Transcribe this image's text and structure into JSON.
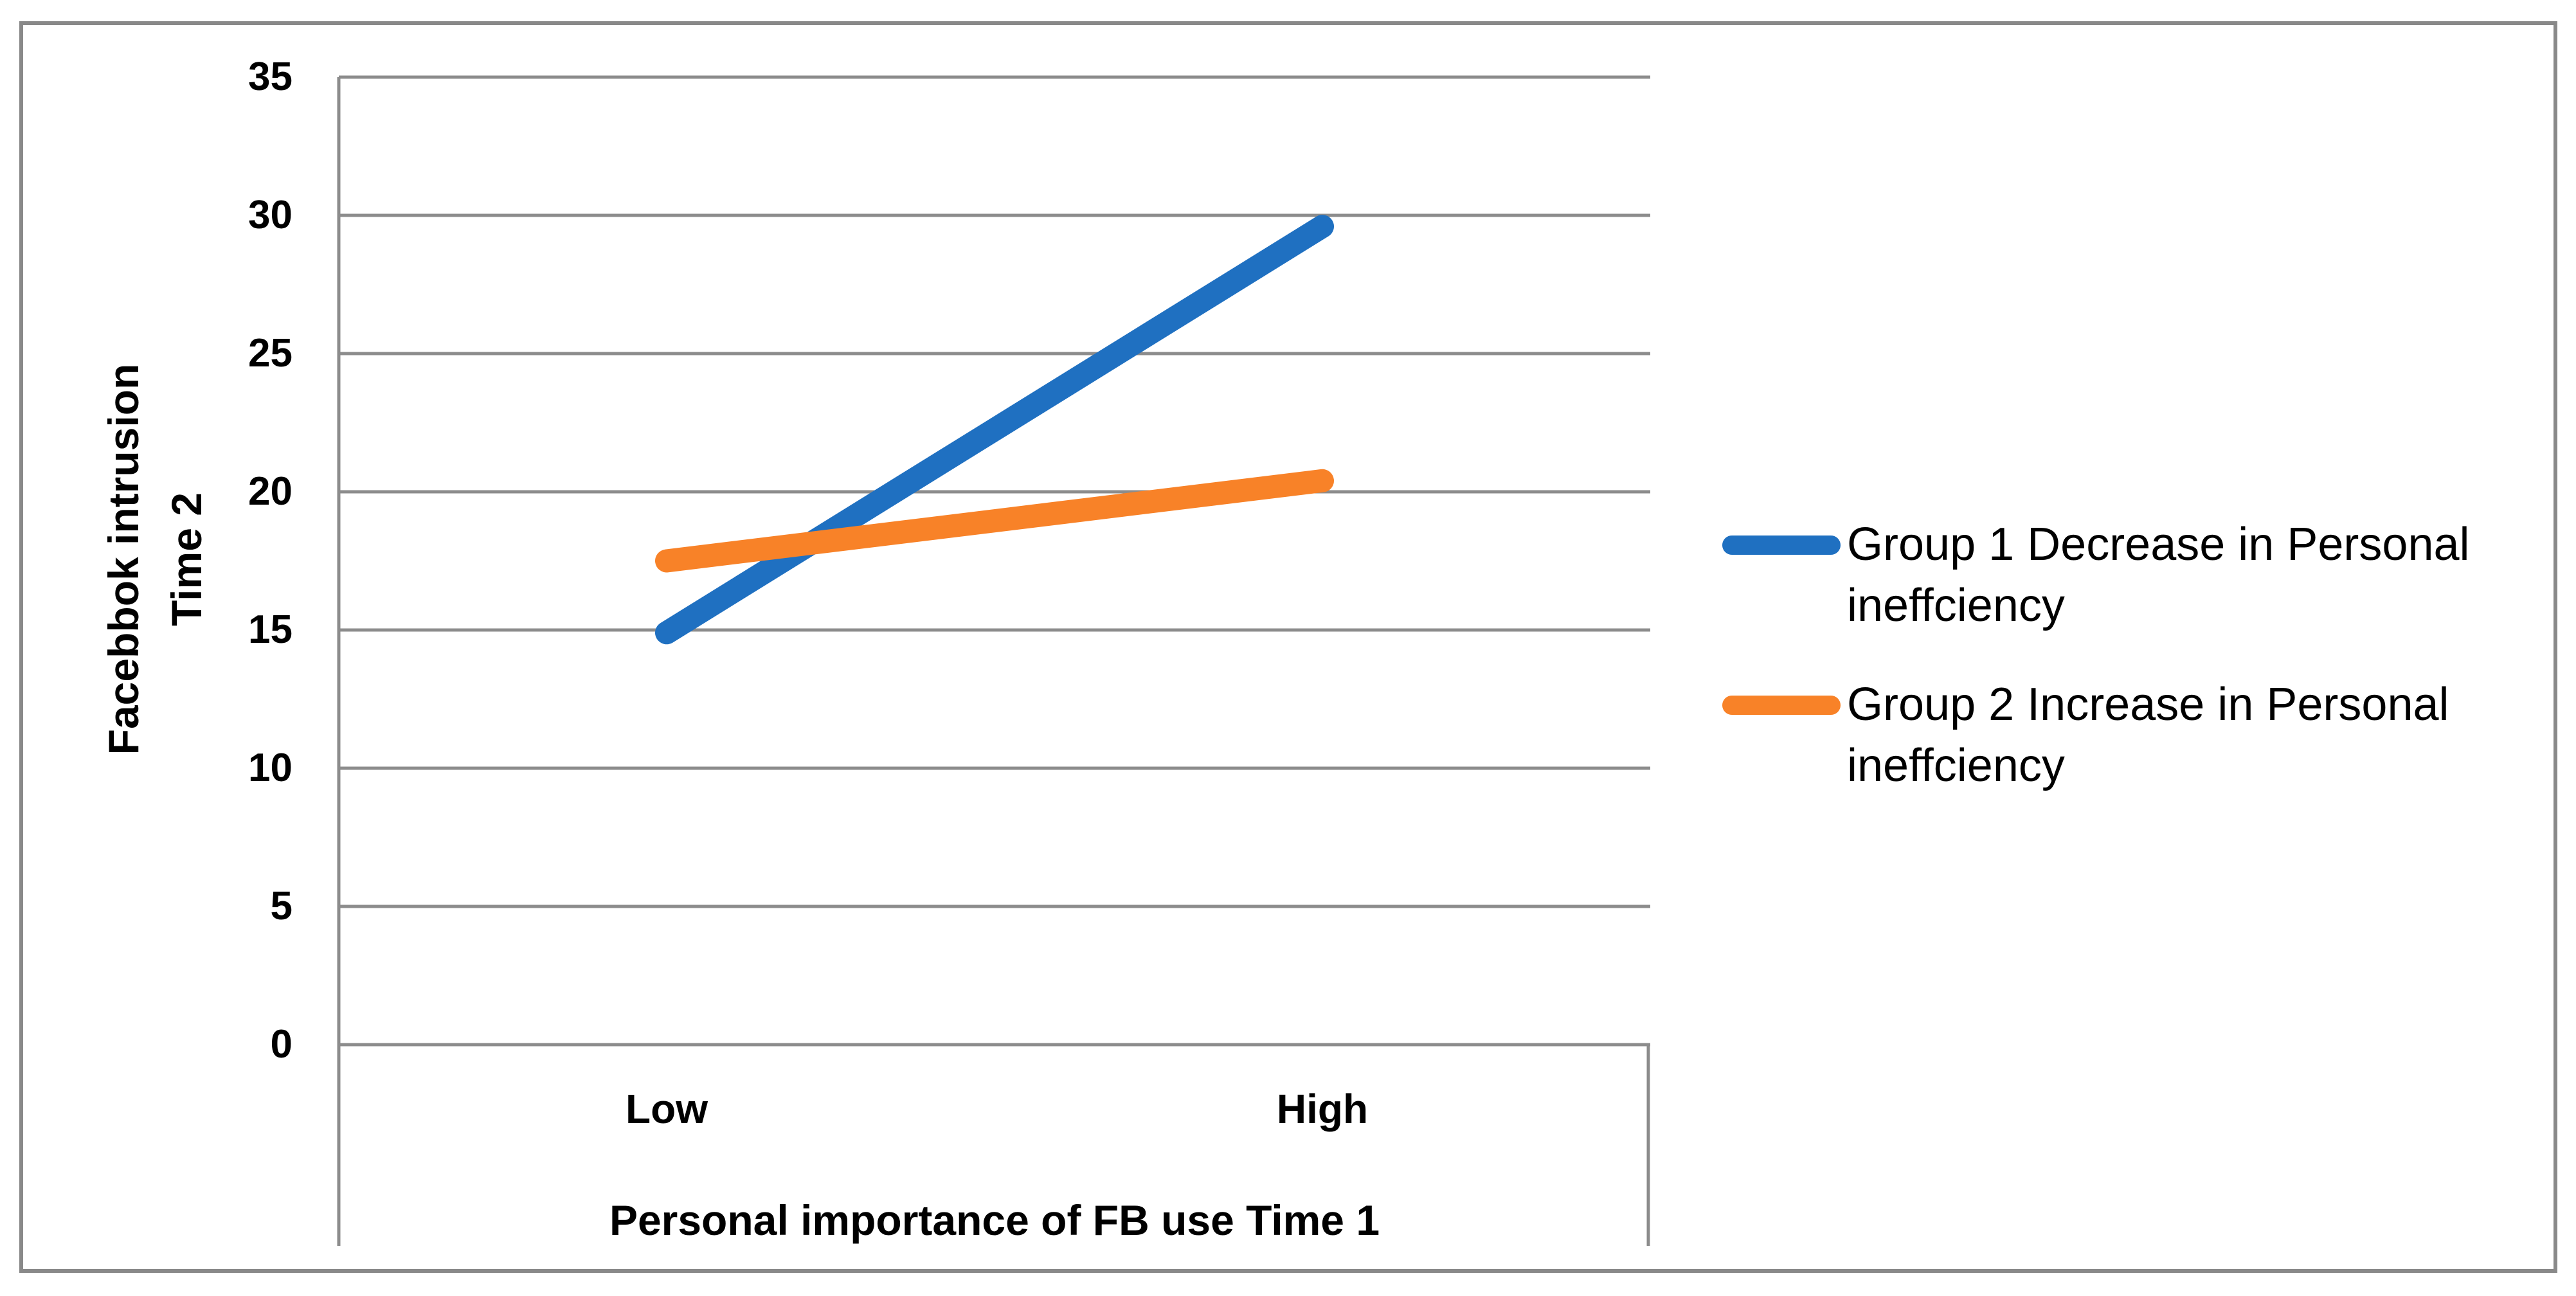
{
  "figure": {
    "background": "#ffffff",
    "border_color": "#898989"
  },
  "chart_data": {
    "type": "line",
    "title": "",
    "categories": [
      "Low",
      "High"
    ],
    "series": [
      {
        "name": "Group 1 Decrease in Personal ineffciency",
        "legend_lines": [
          "Group 1 Decrease in Personal",
          "ineffciency"
        ],
        "color": "#1F70C1",
        "values": [
          14.9,
          29.6
        ]
      },
      {
        "name": "Group 2 Increase in Personal ineffciency",
        "legend_lines": [
          "Group 2 Increase in Personal",
          "ineffciency"
        ],
        "color": "#F88228",
        "values": [
          17.5,
          20.4
        ]
      }
    ],
    "xlabel": "Personal importance of FB use Time 1",
    "ylabel_lines": [
      "Facebbok intrusion",
      "Time 2"
    ],
    "ylim": [
      0,
      35
    ],
    "ytick_step": 5,
    "yticks": [
      "35",
      "30",
      "25",
      "20",
      "15",
      "10",
      "5",
      "0"
    ],
    "grid": true,
    "gridline_color": "#8C8C8C",
    "axis_line_color": "#8C8C8C",
    "legend_position": "right"
  }
}
